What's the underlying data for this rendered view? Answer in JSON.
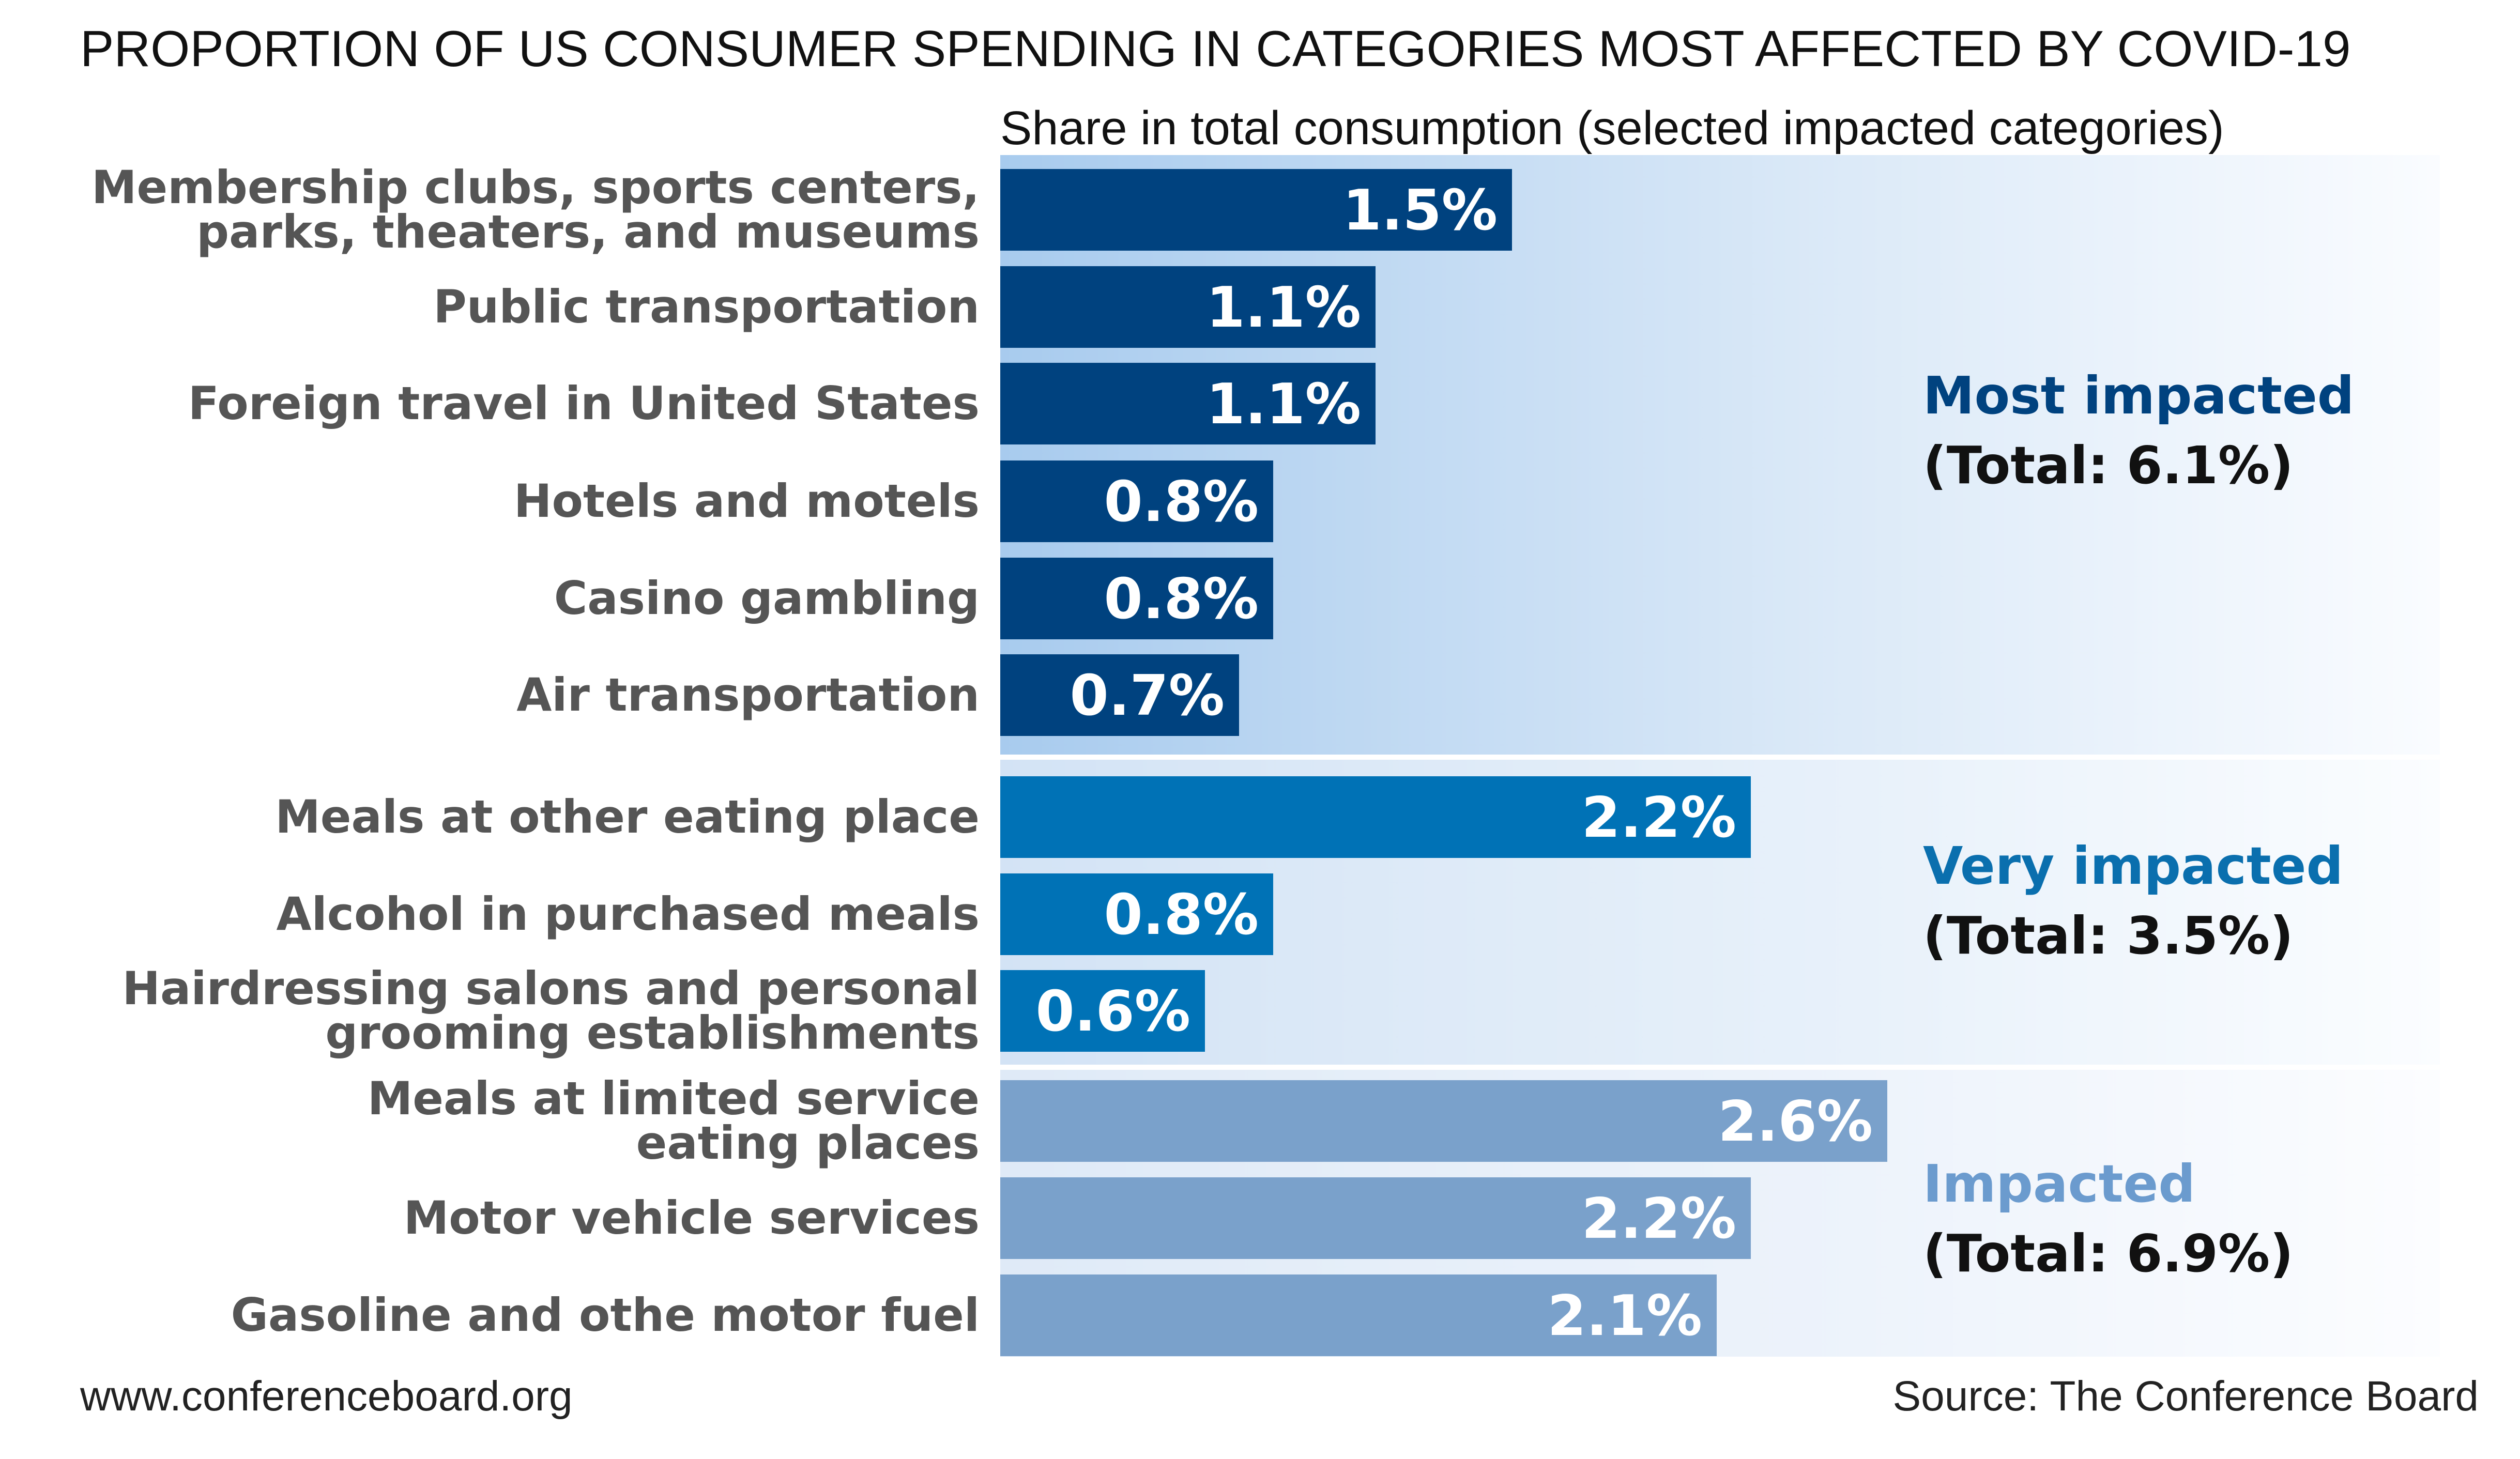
{
  "title": "PROPORTION OF US CONSUMER SPENDING IN CATEGORIES MOST AFFECTED BY COVID-19",
  "subtitle": "Share in total consumption (selected impacted categories)",
  "footer": {
    "website": "www.conferenceboard.org",
    "source": "Source: The Conference Board"
  },
  "colors": {
    "most": "#00427f",
    "very": "#0072b6",
    "impacted": "#7aa1cb",
    "label_gray": "#555555"
  },
  "chart_data": {
    "type": "bar",
    "orientation": "horizontal",
    "unit": "%",
    "groups": [
      {
        "key": "most",
        "name": "Most impacted",
        "total_label": "(Total: 6.1%)",
        "items": [
          {
            "label": [
              "Membership clubs, sports centers,",
              "parks, theaters, and museums"
            ],
            "value": 1.5,
            "value_label": "1.5%"
          },
          {
            "label": [
              "Public transportation"
            ],
            "value": 1.1,
            "value_label": "1.1%"
          },
          {
            "label": [
              "Foreign travel in United States"
            ],
            "value": 1.1,
            "value_label": "1.1%"
          },
          {
            "label": [
              "Hotels and motels"
            ],
            "value": 0.8,
            "value_label": "0.8%"
          },
          {
            "label": [
              "Casino gambling"
            ],
            "value": 0.8,
            "value_label": "0.8%"
          },
          {
            "label": [
              "Air transportation"
            ],
            "value": 0.7,
            "value_label": "0.7%"
          }
        ]
      },
      {
        "key": "very",
        "name": "Very impacted",
        "total_label": "(Total: 3.5%)",
        "items": [
          {
            "label": [
              "Meals at other eating place"
            ],
            "value": 2.2,
            "value_label": "2.2%"
          },
          {
            "label": [
              "Alcohol in purchased meals"
            ],
            "value": 0.8,
            "value_label": "0.8%"
          },
          {
            "label": [
              "Hairdressing salons and personal",
              "grooming establishments"
            ],
            "value": 0.6,
            "value_label": "0.6%"
          }
        ]
      },
      {
        "key": "impacted",
        "name": "Impacted",
        "total_label": "(Total: 6.9%)",
        "items": [
          {
            "label": [
              "Meals at limited service",
              "eating places"
            ],
            "value": 2.6,
            "value_label": "2.6%"
          },
          {
            "label": [
              "Motor vehicle services"
            ],
            "value": 2.2,
            "value_label": "2.2%"
          },
          {
            "label": [
              "Gasoline and othe motor fuel"
            ],
            "value": 2.1,
            "value_label": "2.1%"
          }
        ]
      }
    ]
  }
}
